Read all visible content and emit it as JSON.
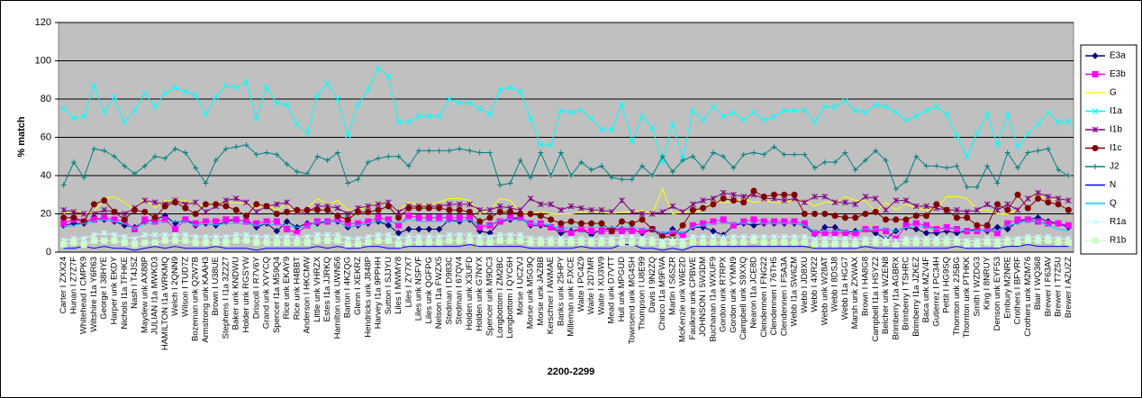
{
  "chart_data": {
    "type": "line",
    "x_label": "2200-2299",
    "y_label": "% match",
    "ylim": [
      0,
      120
    ],
    "yticks": [
      0,
      20,
      40,
      60,
      80,
      100,
      120
    ],
    "grid": true,
    "legend": "right",
    "categories": [
      "Carter I ZXX24",
      "Hunan I Z7Z7F",
      "Whitehead I CMPK9",
      "Wiltshire I1a Y6R63",
      "George I 38HYE",
      "Harper unk EKDY",
      "Nichols I1a TFHKE",
      "Nash I T4JSZ",
      "Maydew unk AX88P",
      "JULIAN I1a MWKD3",
      "HAMILTON I1a WRKMQ",
      "Welch I 2QNN9",
      "Wilson I TUD7Z",
      "Bozeman unk Q2W7B",
      "Armstrong unk KAAH3",
      "Brown I U38UE",
      "Stephens I I1a 3Z2Z7",
      "Baker unk KNDWU",
      "Holder unk RGSYW",
      "Driscoll I R7V6Y",
      "Grand unk XVYCQ",
      "Spencer I1a M59Q4",
      "Rice unk EKAY9",
      "Rice unk H4BBT",
      "Anderson I HKCMW",
      "Little unk VHRZX",
      "Estes I1a JJRKQ",
      "Hamilton unk UWN56",
      "Barton I 4KZQG",
      "Glenn I XEKRZ",
      "Hendricks unk J848P",
      "Harvey I1a 9PPHH",
      "Sutton I SJJYU",
      "Liles I MWMY8",
      "Liles I ZY7X7",
      "Liles unk NSFVF",
      "Liles unk QGFPG",
      "Nelson I1a FWZX5",
      "Stedman I D983C",
      "Stedman I 67QV4",
      "Holden unk X3UFD",
      "Holden unk G7NYX",
      "Spencer unk M9DC3",
      "Longbottom I ZM2BC",
      "Longbottom I QYC6H",
      "Morse I UCZVJ",
      "Morse unk M5G9Q",
      "Morse unk JAZBB",
      "Kerschner I AWMAE",
      "Banks unk 25HPY",
      "Milleman unk FJXCE",
      "Waite I PC4Z9",
      "Waite I 2D7MR",
      "Waite I XU3W9",
      "Mead unk D7VTT",
      "Hull unk MPGUD",
      "Townsend unk MG4SH",
      "Thompson I U8E99",
      "Davis I 9N2ZQ",
      "Chirico I1a M9FWA",
      "Martin I S6SZR",
      "McKenzie unk W6E2D",
      "Faulkner unk CPBWE",
      "JOHNSON I 5W3DM",
      "Buchanan I1a WXUF9",
      "Gordon unk R7RPX",
      "Gordon unk YYMN9",
      "Campbell unk S9XXQ",
      "Nearon I1a JCE8D",
      "Clendennen I FNG22",
      "Clendennen I 76TH5",
      "Clendennen I F5A3A",
      "Webb I1a SW6ZM",
      "Webb I JD8XU",
      "Webb I 4XR22",
      "Webb unk W28AT",
      "Webb I 8DSJ8",
      "Webb I1a HGG7",
      "Marsh unk ZXWAX",
      "Brown I HA8G8",
      "Campbell I1a I HSYZ2",
      "Belcher unk WZEN8",
      "Brimberry I1a AGBRX",
      "Brimberry I TSHRC",
      "Brimberry I1a JZKEZ",
      "Baca unk MZV4F",
      "Gutierrez I PC34H",
      "Pettit I HG9SQ",
      "Thornton unk 2J5BG",
      "Thornton unk PTHKK",
      "Smith I WZDG3",
      "King I 8NRUY",
      "Denson unk EYF53",
      "Embury M2NRE",
      "Crothers I BFVRF",
      "Crothers unk M2M76",
      "Blair I WQ368",
      "Brewer I F63AV",
      "Brewer I T7Z5U",
      "Brewer I AZUZZ"
    ],
    "series": [
      {
        "name": "E3a",
        "color": "#000080",
        "marker": "diamond",
        "values": [
          14,
          15,
          15,
          18,
          17,
          16,
          14,
          13,
          16,
          17,
          19,
          15,
          17,
          14,
          15,
          14,
          16,
          17,
          16,
          13,
          15,
          11,
          16,
          13,
          15,
          15,
          16,
          16,
          13,
          14,
          15,
          16,
          14,
          10,
          12,
          12,
          12,
          12,
          17,
          16,
          17,
          11,
          10,
          16,
          17,
          18,
          14,
          14,
          13,
          10,
          11,
          12,
          9,
          12,
          12,
          12,
          12,
          10,
          12,
          8,
          12,
          9,
          13,
          13,
          11,
          9,
          14,
          15,
          14,
          15,
          15,
          15,
          15,
          14,
          9,
          13,
          13,
          10,
          11,
          12,
          10,
          7,
          11,
          13,
          12,
          10,
          10,
          11,
          10,
          11,
          12,
          11,
          13,
          12,
          16,
          17,
          18,
          16,
          15,
          13
        ]
      },
      {
        "name": "E3b",
        "color": "#ff00ff",
        "marker": "square",
        "values": [
          15,
          17,
          16,
          17,
          18,
          17,
          16,
          12,
          17,
          16,
          17,
          12,
          17,
          15,
          16,
          16,
          17,
          17,
          16,
          15,
          16,
          16,
          12,
          10,
          14,
          16,
          16,
          17,
          15,
          15,
          16,
          18,
          17,
          14,
          19,
          18,
          18,
          18,
          18,
          18,
          18,
          13,
          14,
          16,
          18,
          18,
          15,
          15,
          13,
          12,
          10,
          12,
          11,
          11,
          11,
          11,
          11,
          11,
          12,
          9,
          10,
          9,
          14,
          15,
          16,
          17,
          14,
          16,
          17,
          16,
          16,
          16,
          16,
          15,
          10,
          10,
          10,
          10,
          9,
          12,
          12,
          11,
          7,
          14,
          15,
          14,
          12,
          13,
          12,
          11,
          11,
          12,
          10,
          15,
          17,
          17,
          16,
          15,
          15,
          14
        ]
      },
      {
        "name": "G",
        "color": "#ffff00",
        "marker": "none",
        "values": [
          20,
          22,
          20,
          21,
          28,
          29,
          26,
          22,
          28,
          23,
          27,
          26,
          27,
          25,
          24,
          26,
          26,
          26,
          25,
          23,
          25,
          22,
          25,
          20,
          23,
          28,
          25,
          27,
          22,
          22,
          24,
          26,
          25,
          22,
          26,
          25,
          25,
          26,
          28,
          28,
          27,
          20,
          22,
          28,
          27,
          21,
          20,
          21,
          20,
          20,
          20,
          21,
          21,
          21,
          20,
          21,
          21,
          22,
          20,
          33,
          20,
          21,
          21,
          22,
          27,
          26,
          26,
          28,
          26,
          27,
          26,
          26,
          27,
          27,
          24,
          26,
          26,
          29,
          27,
          27,
          21,
          26,
          22,
          25,
          23,
          22,
          23,
          29,
          29,
          28,
          22,
          22,
          20,
          20,
          22,
          28,
          30,
          27,
          28,
          27
        ]
      },
      {
        "name": "I1a",
        "color": "#00ffff",
        "marker": "x",
        "values": [
          75,
          70,
          71,
          87,
          73,
          81,
          68,
          74,
          83,
          76,
          83,
          86,
          84,
          82,
          72,
          81,
          87,
          86,
          89,
          70,
          86,
          78,
          77,
          67,
          62,
          82,
          88,
          80,
          61,
          77,
          85,
          96,
          92,
          68,
          68,
          71,
          71,
          71,
          80,
          78,
          78,
          75,
          72,
          85,
          86,
          84,
          70,
          56,
          56,
          74,
          73,
          74,
          70,
          64,
          64,
          77,
          58,
          71,
          65,
          47,
          67,
          49,
          74,
          69,
          76,
          71,
          73,
          69,
          73,
          69,
          71,
          74,
          74,
          74,
          68,
          76,
          76,
          79,
          74,
          73,
          77,
          76,
          73,
          69,
          71,
          74,
          76,
          72,
          61,
          50,
          62,
          72,
          56,
          72,
          55,
          62,
          67,
          73,
          68,
          68
        ]
      },
      {
        "name": "I1b",
        "color": "#800080",
        "marker": "star",
        "values": [
          22,
          21,
          20,
          20,
          22,
          21,
          20,
          23,
          27,
          26,
          25,
          27,
          25,
          26,
          21,
          24,
          27,
          28,
          26,
          21,
          24,
          25,
          26,
          21,
          21,
          24,
          24,
          23,
          20,
          23,
          24,
          25,
          26,
          21,
          24,
          24,
          24,
          24,
          25,
          25,
          25,
          22,
          22,
          24,
          23,
          22,
          28,
          25,
          25,
          22,
          24,
          23,
          22,
          22,
          21,
          27,
          21,
          20,
          20,
          21,
          24,
          21,
          25,
          27,
          28,
          31,
          30,
          29,
          30,
          28,
          28,
          27,
          28,
          26,
          29,
          29,
          26,
          26,
          25,
          29,
          28,
          22,
          27,
          27,
          24,
          24,
          23,
          22,
          22,
          21,
          22,
          25,
          22,
          25,
          22,
          28,
          31,
          29,
          28,
          27
        ]
      },
      {
        "name": "I1c",
        "color": "#800000",
        "marker": "circle",
        "values": [
          18,
          18,
          16,
          25,
          27,
          21,
          17,
          22,
          21,
          18,
          24,
          26,
          23,
          20,
          25,
          25,
          24,
          22,
          19,
          25,
          24,
          20,
          21,
          22,
          22,
          22,
          22,
          19,
          17,
          21,
          21,
          22,
          24,
          18,
          23,
          23,
          23,
          23,
          22,
          22,
          21,
          16,
          18,
          21,
          21,
          20,
          20,
          19,
          17,
          15,
          16,
          15,
          15,
          15,
          11,
          16,
          15,
          17,
          12,
          8,
          8,
          14,
          22,
          23,
          25,
          28,
          27,
          26,
          32,
          29,
          30,
          30,
          30,
          20,
          20,
          20,
          19,
          18,
          18,
          20,
          21,
          17,
          17,
          17,
          19,
          19,
          25,
          22,
          18,
          18,
          14,
          14,
          25,
          22,
          30,
          23,
          28,
          26,
          25,
          22
        ]
      },
      {
        "name": "J2",
        "color": "#008080",
        "marker": "plus",
        "values": [
          35,
          47,
          39,
          54,
          53,
          50,
          45,
          41,
          45,
          50,
          49,
          54,
          52,
          44,
          36,
          48,
          54,
          55,
          56,
          51,
          52,
          51,
          46,
          42,
          41,
          50,
          48,
          52,
          36,
          38,
          47,
          49,
          50,
          50,
          45,
          53,
          53,
          53,
          53,
          54,
          53,
          52,
          52,
          35,
          36,
          48,
          39,
          52,
          40,
          52,
          40,
          47,
          43,
          45,
          39,
          38,
          38,
          45,
          40,
          50,
          42,
          48,
          50,
          44,
          52,
          50,
          44,
          51,
          52,
          51,
          55,
          51,
          51,
          51,
          44,
          47,
          47,
          52,
          43,
          48,
          53,
          48,
          33,
          37,
          50,
          45,
          45,
          44,
          45,
          34,
          34,
          45,
          36,
          52,
          44,
          52,
          53,
          54,
          43,
          40
        ]
      },
      {
        "name": "N",
        "color": "#0000ff",
        "marker": "none",
        "values": [
          2,
          2,
          3,
          2,
          3,
          2,
          2,
          1,
          2,
          3,
          2,
          3,
          2,
          2,
          2,
          3,
          2,
          2,
          2,
          1,
          2,
          2,
          2,
          2,
          2,
          3,
          2,
          3,
          2,
          2,
          3,
          3,
          2,
          2,
          3,
          3,
          3,
          3,
          3,
          3,
          4,
          3,
          3,
          3,
          3,
          3,
          2,
          2,
          2,
          2,
          2,
          3,
          2,
          2,
          2,
          4,
          4,
          2,
          2,
          1,
          2,
          1,
          3,
          3,
          3,
          3,
          3,
          3,
          3,
          3,
          3,
          3,
          3,
          3,
          2,
          2,
          2,
          2,
          2,
          3,
          2,
          2,
          2,
          2,
          2,
          2,
          2,
          2,
          3,
          2,
          2,
          2,
          2,
          3,
          3,
          4,
          3,
          3,
          3,
          3
        ]
      },
      {
        "name": "Q",
        "color": "#00ccff",
        "marker": "none",
        "values": [
          13,
          14,
          15,
          16,
          17,
          16,
          15,
          12,
          15,
          15,
          16,
          16,
          16,
          14,
          15,
          14,
          15,
          15,
          15,
          14,
          15,
          14,
          14,
          13,
          13,
          16,
          16,
          16,
          13,
          14,
          15,
          16,
          16,
          15,
          17,
          16,
          16,
          16,
          16,
          16,
          17,
          14,
          14,
          17,
          17,
          17,
          15,
          15,
          14,
          12,
          13,
          13,
          13,
          13,
          13,
          13,
          13,
          12,
          12,
          10,
          11,
          10,
          13,
          14,
          15,
          15,
          15,
          15,
          15,
          15,
          15,
          15,
          15,
          14,
          11,
          11,
          11,
          11,
          11,
          12,
          12,
          12,
          11,
          13,
          14,
          13,
          12,
          12,
          12,
          11,
          11,
          12,
          11,
          14,
          15,
          16,
          16,
          14,
          12,
          11
        ]
      },
      {
        "name": "R1a",
        "color": "#ccffff",
        "marker": "star",
        "values": [
          6,
          7,
          7,
          9,
          10,
          9,
          8,
          7,
          9,
          9,
          9,
          9,
          9,
          8,
          8,
          8,
          8,
          9,
          9,
          8,
          8,
          8,
          8,
          8,
          8,
          9,
          9,
          9,
          7,
          7,
          8,
          9,
          9,
          7,
          8,
          8,
          8,
          8,
          9,
          9,
          9,
          8,
          8,
          9,
          9,
          9,
          7,
          7,
          7,
          7,
          7,
          7,
          7,
          7,
          7,
          8,
          8,
          7,
          7,
          6,
          7,
          6,
          8,
          8,
          8,
          8,
          8,
          8,
          8,
          8,
          8,
          8,
          8,
          8,
          7,
          7,
          7,
          7,
          7,
          7,
          7,
          7,
          6,
          7,
          7,
          7,
          7,
          7,
          7,
          6,
          6,
          7,
          6,
          7,
          7,
          8,
          8,
          8,
          7,
          7
        ]
      },
      {
        "name": "R1b",
        "color": "#ccffcc",
        "marker": "square",
        "values": [
          4,
          5,
          4,
          6,
          6,
          6,
          5,
          4,
          5,
          5,
          6,
          6,
          6,
          5,
          5,
          5,
          5,
          6,
          6,
          5,
          5,
          5,
          5,
          5,
          5,
          6,
          6,
          6,
          4,
          4,
          5,
          6,
          6,
          4,
          5,
          5,
          5,
          5,
          6,
          6,
          6,
          5,
          5,
          6,
          6,
          6,
          5,
          5,
          5,
          5,
          5,
          5,
          5,
          5,
          5,
          5,
          5,
          5,
          5,
          4,
          5,
          4,
          5,
          5,
          5,
          5,
          5,
          5,
          6,
          5,
          5,
          5,
          5,
          5,
          4,
          4,
          4,
          4,
          4,
          5,
          5,
          5,
          4,
          5,
          5,
          5,
          5,
          5,
          5,
          4,
          4,
          5,
          4,
          5,
          5,
          6,
          6,
          6,
          5,
          5
        ]
      }
    ]
  }
}
